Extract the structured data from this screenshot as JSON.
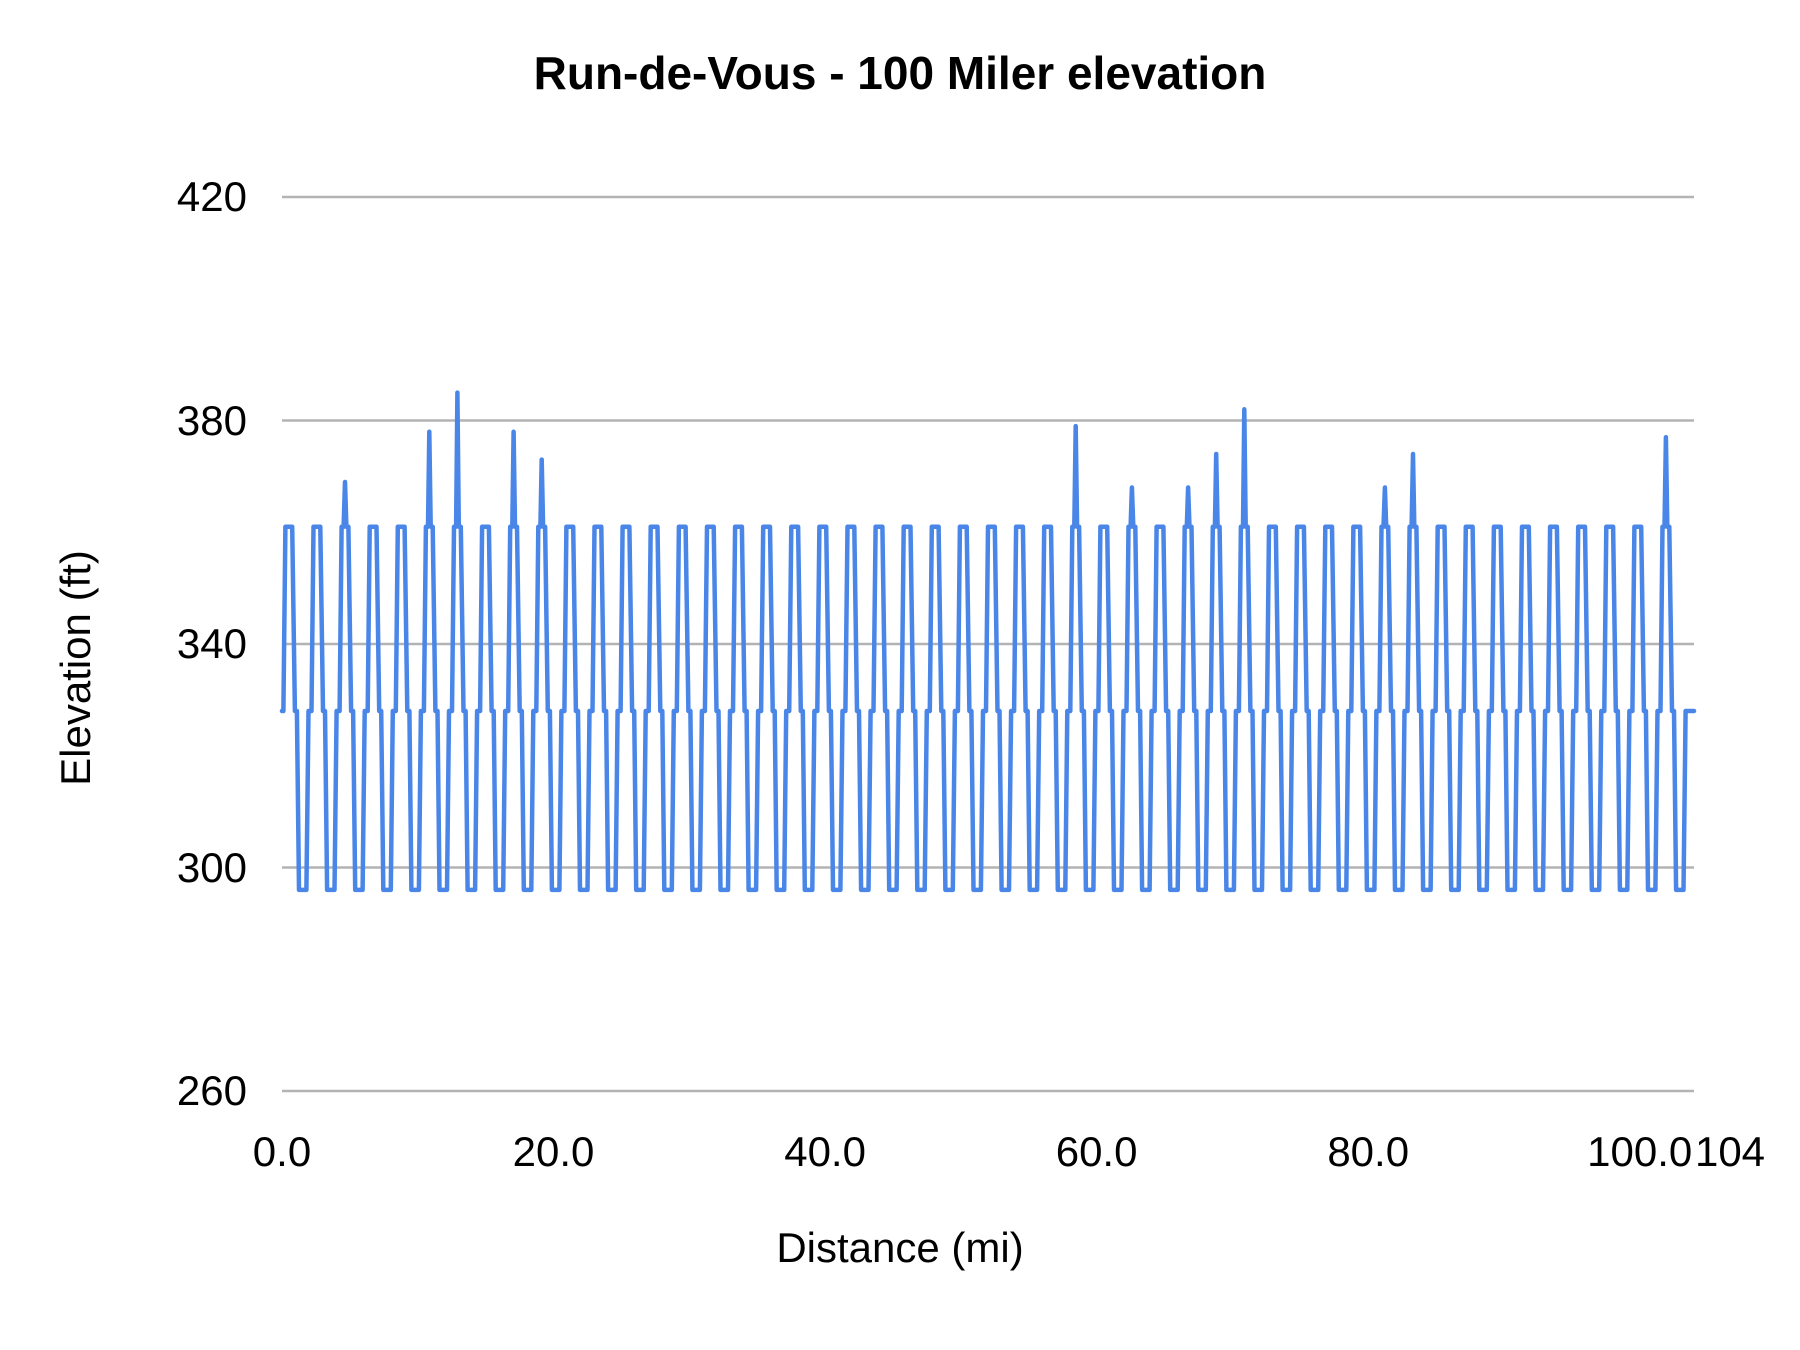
{
  "background_color": "#ffffff",
  "chart_data": {
    "type": "line",
    "title": "Run-de-Vous - 100 Miler elevation",
    "xlabel": "Distance (mi)",
    "ylabel": "Elevation (ft)",
    "x_range": [
      0,
      104
    ],
    "y_range": [
      260,
      420
    ],
    "grid": true,
    "legend": "none",
    "line_color": "#4a86e8",
    "gridline_color": "#b3b3b3",
    "text_color": "#000000",
    "y_ticks": [
      {
        "value": 420,
        "label": "420"
      },
      {
        "value": 380,
        "label": "380"
      },
      {
        "value": 340,
        "label": "340"
      },
      {
        "value": 300,
        "label": "300"
      },
      {
        "value": 260,
        "label": "260"
      }
    ],
    "x_ticks": [
      {
        "mile": 0,
        "label": "0.0"
      },
      {
        "mile": 20,
        "label": "20.0"
      },
      {
        "mile": 40,
        "label": "40.0"
      },
      {
        "mile": 60,
        "label": "60.0"
      },
      {
        "mile": 80,
        "label": "80.0"
      },
      {
        "mile": 100,
        "label": "100.0"
      }
    ],
    "x_end_tick": {
      "mile": 104,
      "label": "104"
    },
    "series": [
      {
        "name": "Elevation",
        "description": "Repeating ~2.07 mi loop: shoulder 328 ft, peak ~361 ft, valley ~296 ft; occasional taller peaks listed per loop in peak_elevations.",
        "pattern": {
          "start": {
            "mile": 0,
            "elev": 328
          },
          "end": {
            "mile": 104,
            "elev": 328
          },
          "cycle_period_mi": 2.07,
          "first_peak_mile": 0.5,
          "shoulder_elev": 328,
          "peak_plateau_elev": 361,
          "valley_elev": 296,
          "peak_elevations": [
            361,
            361,
            369,
            361,
            361,
            378,
            385,
            361,
            378,
            373,
            361,
            361,
            361,
            361,
            361,
            361,
            361,
            361,
            361,
            361,
            361,
            361,
            361,
            361,
            361,
            361,
            361,
            361,
            379,
            361,
            368,
            361,
            368,
            374,
            382,
            361,
            361,
            361,
            361,
            368,
            374,
            361,
            361,
            361,
            361,
            361,
            361,
            361,
            361,
            377
          ]
        }
      }
    ]
  }
}
